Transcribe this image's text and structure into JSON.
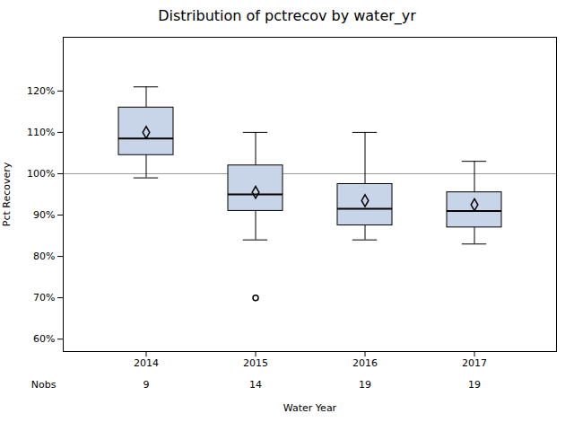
{
  "chart_data": {
    "type": "box",
    "title": "Distribution of pctrecov by water_yr",
    "xlabel": "Water Year",
    "ylabel": "Pct Recovery",
    "categories": [
      2014,
      2015,
      2016,
      2017
    ],
    "boxes": [
      {
        "q1": 104.5,
        "median": 108.5,
        "q3": 116.0,
        "mean": 110.0,
        "whisker_low": 99.0,
        "whisker_high": 121.0,
        "outliers": []
      },
      {
        "q1": 91.0,
        "median": 95.0,
        "q3": 102.0,
        "mean": 95.5,
        "whisker_low": 84.0,
        "whisker_high": 110.0,
        "outliers": [
          70.0
        ]
      },
      {
        "q1": 87.5,
        "median": 91.5,
        "q3": 97.5,
        "mean": 93.5,
        "whisker_low": 84.0,
        "whisker_high": 110.0,
        "outliers": []
      },
      {
        "q1": 87.0,
        "median": 91.0,
        "q3": 95.5,
        "mean": 92.5,
        "whisker_low": 83.0,
        "whisker_high": 103.0,
        "outliers": []
      }
    ],
    "nobs_label": "Nobs",
    "nobs": [
      9,
      14,
      19,
      19
    ],
    "reference_line": 100,
    "color": "#c8d4e8",
    "ylim": [
      57,
      133
    ],
    "yticks": [
      {
        "value": 60,
        "label": "60%"
      },
      {
        "value": 70,
        "label": "70%"
      },
      {
        "value": 80,
        "label": "80%"
      },
      {
        "value": 90,
        "label": "90%"
      },
      {
        "value": 100,
        "label": "100%"
      },
      {
        "value": 110,
        "label": "110%"
      },
      {
        "value": 120,
        "label": "120%"
      }
    ],
    "grid": false
  }
}
